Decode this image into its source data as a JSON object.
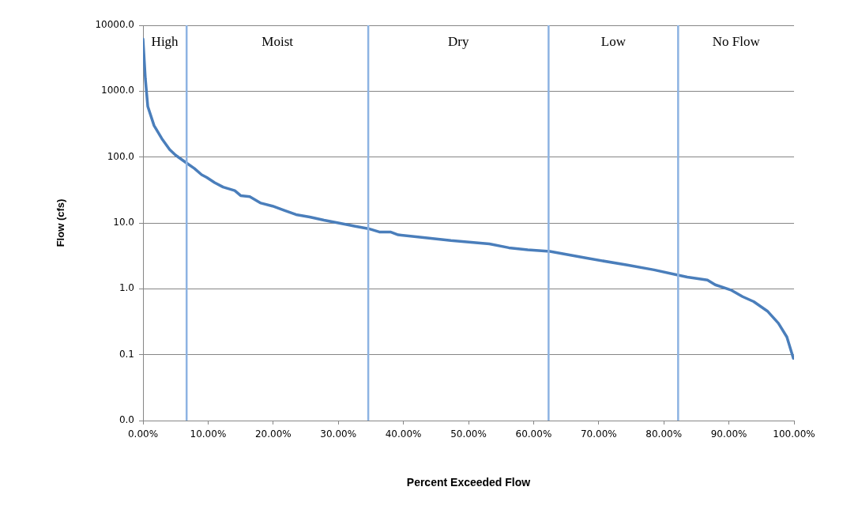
{
  "chart_data": {
    "type": "line",
    "xlabel": "Percent Exceeded Flow",
    "ylabel": "Flow (cfs)",
    "series": [
      {
        "color": "#4a7ebb",
        "x": [
          0,
          0.36,
          0.73,
          1.7,
          2.9,
          4.1,
          5.0,
          6.7,
          7.9,
          9.0,
          9.8,
          11.0,
          12.3,
          14.1,
          15.0,
          16.4,
          18.1,
          19.9,
          21.7,
          23.5,
          25.6,
          27.8,
          30.0,
          31.4,
          32.6,
          34.6,
          36.3,
          38.0,
          39.2,
          43.1,
          47.3,
          53.2,
          56.2,
          59.1,
          62.5,
          68.0,
          74.4,
          78.5,
          81.9,
          83.6,
          86.7,
          87.9,
          90.4,
          92.1,
          93.8,
          95.9,
          97.6,
          98.9,
          99.9
        ],
        "values": [
          6200,
          1560,
          590,
          300,
          190,
          130,
          107,
          81,
          67,
          54,
          49,
          41,
          35,
          31,
          26,
          25,
          20,
          18,
          15.5,
          13.4,
          12.3,
          11,
          10,
          9.4,
          8.9,
          8.2,
          7.3,
          7.3,
          6.6,
          6.0,
          5.4,
          4.8,
          4.2,
          3.9,
          3.7,
          2.94,
          2.29,
          1.94,
          1.64,
          1.51,
          1.36,
          1.15,
          0.95,
          0.76,
          0.64,
          0.46,
          0.3,
          0.186,
          0.088
        ]
      }
    ],
    "xlim": [
      0,
      100
    ],
    "xticks": [
      {
        "value": 0,
        "label": "0.00%"
      },
      {
        "value": 10,
        "label": "10.00%"
      },
      {
        "value": 20,
        "label": "20.00%"
      },
      {
        "value": 30,
        "label": "30.00%"
      },
      {
        "value": 40,
        "label": "40.00%"
      },
      {
        "value": 50,
        "label": "50.00%"
      },
      {
        "value": 60,
        "label": "60.00%"
      },
      {
        "value": 70,
        "label": "70.00%"
      },
      {
        "value": 80,
        "label": "80.00%"
      },
      {
        "value": 90,
        "label": "90.00%"
      },
      {
        "value": 100,
        "label": "100.00%"
      }
    ],
    "ylim": [
      0.01,
      10000
    ],
    "yticks": [
      {
        "value": 0.01,
        "label": "0.0"
      },
      {
        "value": 0.1,
        "label": "0.1"
      },
      {
        "value": 1,
        "label": "1.0"
      },
      {
        "value": 10,
        "label": "10.0"
      },
      {
        "value": 100,
        "label": "100.0"
      },
      {
        "value": 1000,
        "label": "1000.0"
      },
      {
        "value": 10000,
        "label": "10000.0"
      }
    ],
    "log": "y",
    "grid": "y",
    "marker": "none",
    "line_style": "solid",
    "ref_lines": [
      {
        "axis": "x",
        "value": 6.7,
        "color": "#8db3e2"
      },
      {
        "axis": "x",
        "value": 34.6,
        "color": "#8db3e2"
      },
      {
        "axis": "x",
        "value": 62.3,
        "color": "#8db3e2"
      },
      {
        "axis": "x",
        "value": 82.2,
        "color": "#8db3e2"
      }
    ],
    "annotations": [
      "High",
      "Moist",
      "Dry",
      "Low",
      "No Flow"
    ]
  }
}
